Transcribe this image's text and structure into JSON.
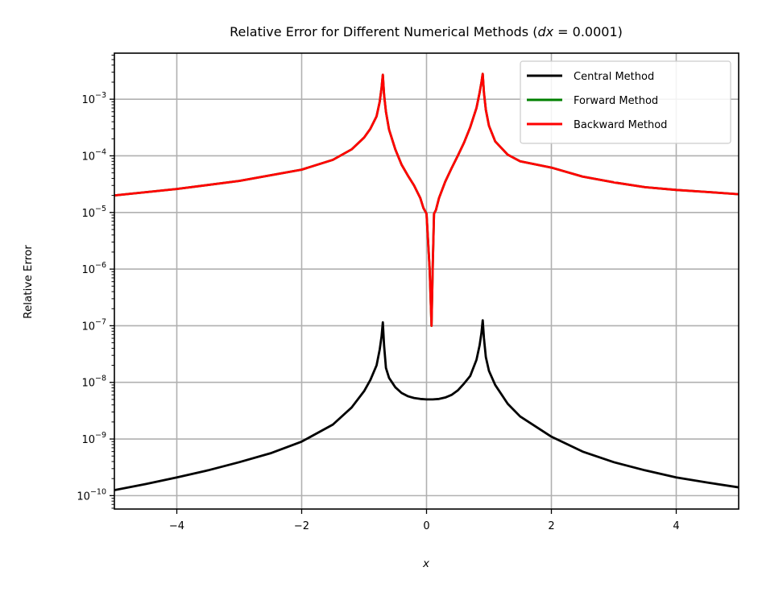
{
  "chart_data": {
    "type": "line",
    "title": "Relative Error for Different Numerical Methods (dx = 0.0001)",
    "title_parts": {
      "main": "Relative Error for Different Numerical Methods (",
      "math": "dx",
      "eq": " = 0.0001)"
    },
    "xlabel": "x",
    "ylabel": "Relative Error",
    "xlim": [
      -5,
      5
    ],
    "ylim": [
      5.8e-11,
      0.0065
    ],
    "yscale": "log",
    "grid": true,
    "legend_position": "top-right",
    "x_ticks": [
      -4,
      -2,
      0,
      2,
      4
    ],
    "x_tick_labels": [
      "−4",
      "−2",
      "0",
      "2",
      "4"
    ],
    "y_ticks": [
      {
        "value": 1e-10,
        "base": "10",
        "exp": "−10"
      },
      {
        "value": 1e-09,
        "base": "10",
        "exp": "−9"
      },
      {
        "value": 1e-08,
        "base": "10",
        "exp": "−8"
      },
      {
        "value": 1e-07,
        "base": "10",
        "exp": "−7"
      },
      {
        "value": 1e-06,
        "base": "10",
        "exp": "−6"
      },
      {
        "value": 1e-05,
        "base": "10",
        "exp": "−5"
      },
      {
        "value": 0.0001,
        "base": "10",
        "exp": "−4"
      },
      {
        "value": 0.001,
        "base": "10",
        "exp": "−3"
      }
    ],
    "series": [
      {
        "name": "Central Method",
        "color": "#000000",
        "x": [
          -5,
          -4.5,
          -4,
          -3.5,
          -3,
          -2.5,
          -2,
          -1.5,
          -1.2,
          -1.0,
          -0.9,
          -0.8,
          -0.75,
          -0.72,
          -0.7,
          -0.68,
          -0.65,
          -0.6,
          -0.5,
          -0.4,
          -0.3,
          -0.2,
          -0.1,
          0,
          0.1,
          0.2,
          0.3,
          0.4,
          0.5,
          0.6,
          0.7,
          0.8,
          0.85,
          0.88,
          0.9,
          0.92,
          0.95,
          1.0,
          1.1,
          1.3,
          1.5,
          2,
          2.5,
          3,
          3.5,
          4,
          4.5,
          5
        ],
        "y": [
          1.25e-10,
          1.6e-10,
          2.1e-10,
          2.8e-10,
          3.9e-10,
          5.6e-10,
          9e-10,
          1.8e-09,
          3.6e-09,
          7e-09,
          1.1e-08,
          2e-08,
          3.8e-08,
          6.5e-08,
          1.15e-07,
          4.5e-08,
          1.8e-08,
          1.2e-08,
          8.2e-09,
          6.5e-09,
          5.7e-09,
          5.3e-09,
          5.1e-09,
          5e-09,
          5e-09,
          5.1e-09,
          5.4e-09,
          6e-09,
          7.2e-09,
          9.5e-09,
          1.3e-08,
          2.5e-08,
          4.5e-08,
          7.5e-08,
          1.25e-07,
          6e-08,
          2.8e-08,
          1.6e-08,
          9e-09,
          4.2e-09,
          2.5e-09,
          1.1e-09,
          6e-10,
          3.9e-10,
          2.8e-10,
          2.1e-10,
          1.7e-10,
          1.4e-10
        ]
      },
      {
        "name": "Forward Method",
        "color": "#008000",
        "x": [
          -5,
          -4,
          -3,
          -2,
          -1.5,
          -1.2,
          -1.0,
          -0.9,
          -0.8,
          -0.75,
          -0.72,
          -0.7,
          -0.68,
          -0.65,
          -0.6,
          -0.5,
          -0.4,
          -0.3,
          -0.2,
          -0.1,
          -0.05,
          0,
          0.05,
          0.08,
          0.1,
          0.12,
          0.15,
          0.2,
          0.3,
          0.4,
          0.5,
          0.6,
          0.7,
          0.8,
          0.85,
          0.88,
          0.9,
          0.92,
          0.95,
          1.0,
          1.1,
          1.3,
          1.5,
          2,
          2.5,
          3,
          3.5,
          4,
          4.5,
          5
        ],
        "y": [
          2e-05,
          2.6e-05,
          3.6e-05,
          5.7e-05,
          8.5e-05,
          0.00013,
          0.00021,
          0.0003,
          0.0005,
          0.0009,
          0.0016,
          0.0027,
          0.0012,
          0.0006,
          0.00029,
          0.00013,
          7e-05,
          4.5e-05,
          3e-05,
          1.8e-05,
          1.2e-05,
          9.5e-06,
          1e-06,
          1e-07,
          1.2e-06,
          9.5e-06,
          1.1e-05,
          1.8e-05,
          3.5e-05,
          6e-05,
          0.0001,
          0.00017,
          0.00032,
          0.0007,
          0.0013,
          0.002,
          0.0028,
          0.0013,
          0.00065,
          0.00034,
          0.00018,
          0.000105,
          8e-05,
          6.2e-05,
          4.3e-05,
          3.4e-05,
          2.8e-05,
          2.5e-05,
          2.3e-05,
          2.1e-05
        ]
      },
      {
        "name": "Backward Method",
        "color": "#ff0000",
        "x": [
          -5,
          -4,
          -3,
          -2,
          -1.5,
          -1.2,
          -1.0,
          -0.9,
          -0.8,
          -0.75,
          -0.72,
          -0.7,
          -0.68,
          -0.65,
          -0.6,
          -0.5,
          -0.4,
          -0.3,
          -0.2,
          -0.1,
          -0.05,
          0,
          0.05,
          0.08,
          0.1,
          0.12,
          0.15,
          0.2,
          0.3,
          0.4,
          0.5,
          0.6,
          0.7,
          0.8,
          0.85,
          0.88,
          0.9,
          0.92,
          0.95,
          1.0,
          1.1,
          1.3,
          1.5,
          2,
          2.5,
          3,
          3.5,
          4,
          4.5,
          5
        ],
        "y": [
          2e-05,
          2.6e-05,
          3.6e-05,
          5.7e-05,
          8.5e-05,
          0.00013,
          0.00021,
          0.0003,
          0.0005,
          0.0009,
          0.0016,
          0.0027,
          0.0012,
          0.0006,
          0.00029,
          0.00013,
          7e-05,
          4.5e-05,
          3e-05,
          1.8e-05,
          1.2e-05,
          9.5e-06,
          1e-06,
          1e-07,
          1.2e-06,
          9.5e-06,
          1.1e-05,
          1.8e-05,
          3.5e-05,
          6e-05,
          0.0001,
          0.00017,
          0.00032,
          0.0007,
          0.0013,
          0.002,
          0.0028,
          0.0013,
          0.00065,
          0.00034,
          0.00018,
          0.000105,
          8e-05,
          6.2e-05,
          4.3e-05,
          3.4e-05,
          2.8e-05,
          2.5e-05,
          2.3e-05,
          2.1e-05
        ]
      }
    ]
  }
}
